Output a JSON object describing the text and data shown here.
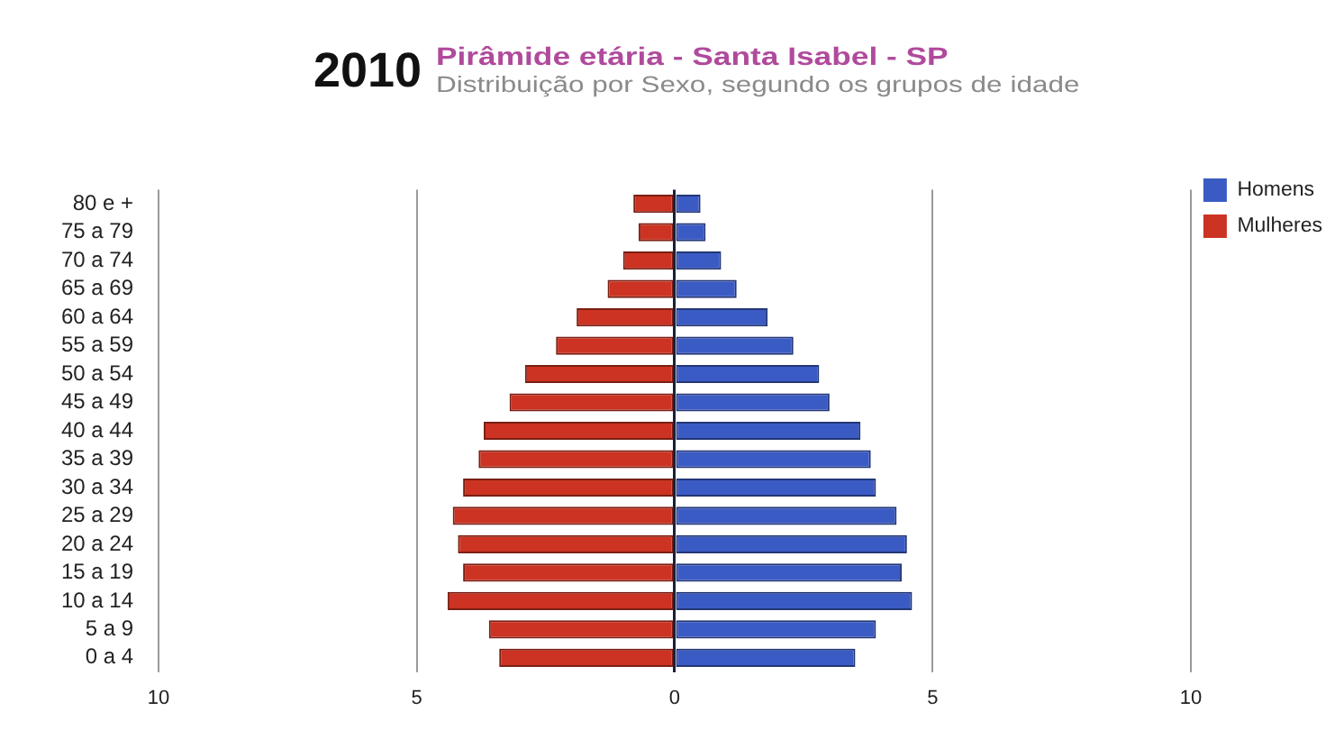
{
  "chart_data": {
    "type": "bar",
    "orientation": "horizontal",
    "stacked": true,
    "title": "Pirâmide etária - Santa Isabel - SP",
    "subtitle": "Distribuição por Sexo, segundo os grupos de idade",
    "annotations": [
      "2010"
    ],
    "categories": [
      "80 e +",
      "75 a 79",
      "70 a 74",
      "65 a 69",
      "60 a 64",
      "55 a 59",
      "50 a 54",
      "45 a 49",
      "40 a 44",
      "35 a 39",
      "30 a 34",
      "25 a 29",
      "20 a 24",
      "15 a 19",
      "10 a 14",
      "5 a 9",
      "0 a 4"
    ],
    "series": [
      {
        "name": "Homens",
        "color": "#3b5bc4",
        "values": [
          0.5,
          0.6,
          0.9,
          1.2,
          1.8,
          2.3,
          2.8,
          3.0,
          3.6,
          3.8,
          3.9,
          4.3,
          4.5,
          4.4,
          4.6,
          3.9,
          3.5
        ]
      },
      {
        "name": "Mulheres",
        "color": "#cc3322",
        "values": [
          -0.8,
          -0.7,
          -1.0,
          -1.3,
          -1.9,
          -2.3,
          -2.9,
          -3.2,
          -3.7,
          -3.8,
          -4.1,
          -4.3,
          -4.2,
          -4.1,
          -4.4,
          -3.6,
          -3.4
        ]
      }
    ],
    "xlim": [
      -10,
      10
    ],
    "xticks": [
      {
        "value": -10,
        "label": "10"
      },
      {
        "value": -5,
        "label": "5"
      },
      0,
      5,
      {
        "value": 10,
        "label": "10"
      }
    ],
    "grid": "x",
    "legend": "top right"
  }
}
